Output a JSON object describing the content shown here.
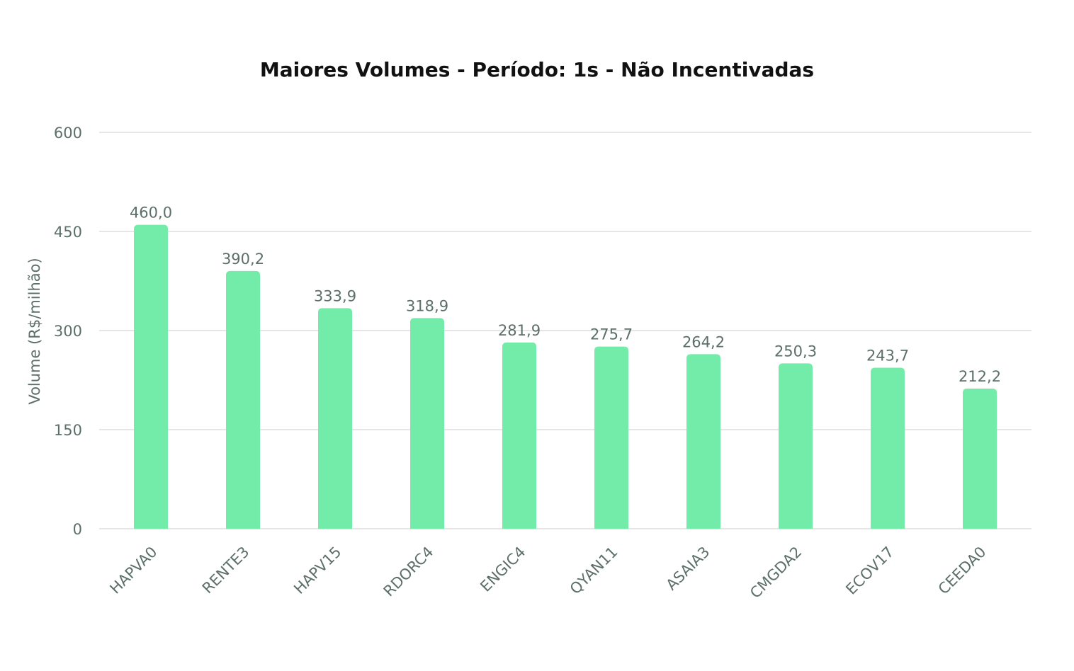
{
  "chart_data": {
    "type": "bar",
    "title": "Maiores Volumes - Período: 1s - Não Incentivadas",
    "xlabel": "",
    "ylabel": "Volume (R$/milhão)",
    "categories": [
      "HAPVA0",
      "RENTE3",
      "HAPV15",
      "RDORC4",
      "ENGIC4",
      "QYAN11",
      "ASAIA3",
      "CMGDA2",
      "ECOV17",
      "CEEDA0"
    ],
    "values": [
      460.0,
      390.2,
      333.9,
      318.9,
      281.9,
      275.7,
      264.2,
      250.3,
      243.7,
      212.2
    ],
    "value_labels": [
      "460,0",
      "390,2",
      "333,9",
      "318,9",
      "281,9",
      "275,7",
      "264,2",
      "250,3",
      "243,7",
      "212,2"
    ],
    "ylim": [
      0,
      600
    ],
    "yticks": [
      0,
      150,
      300,
      450,
      600
    ],
    "ytick_labels": [
      "0",
      "150",
      "300",
      "450",
      "600"
    ],
    "grid": true,
    "legend": "none",
    "colors": {
      "bar": "#72eca8",
      "grid": "#e6e6e6",
      "text": "#5c6f69",
      "title": "#111111"
    }
  }
}
